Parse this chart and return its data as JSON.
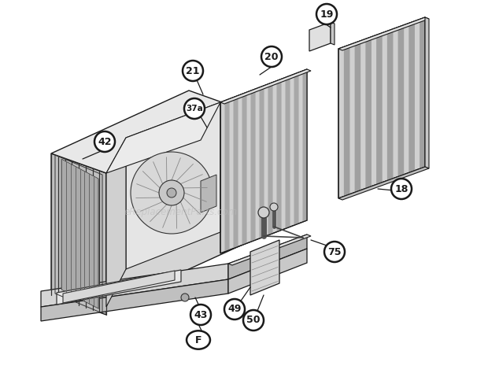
{
  "bg_color": "#ffffff",
  "watermark": "eReplacementParts.com",
  "watermark_color": "#bbbbbb",
  "watermark_alpha": 0.55,
  "line_color": "#1a1a1a",
  "fill_light": "#f0f0f0",
  "fill_mid": "#d8d8d8",
  "fill_dark": "#b8b8b8",
  "fill_coil": "#c8c8c8",
  "hatch_color": "#555555"
}
